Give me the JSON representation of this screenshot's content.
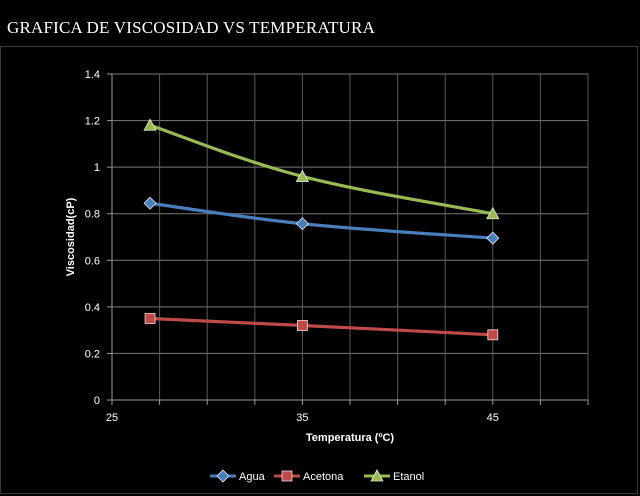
{
  "page": {
    "title": "GRAFICA DE VISCOSIDAD VS TEMPERATURA"
  },
  "chart_data": {
    "type": "scatter",
    "title": "",
    "xlabel": "Temperatura (ºC)",
    "ylabel": "Viscosidad(cP)",
    "xlim": [
      25,
      50
    ],
    "ylim": [
      0,
      1.4
    ],
    "xticks": [
      25,
      35,
      45
    ],
    "yticks": [
      0,
      0.2,
      0.4,
      0.6,
      0.8,
      1,
      1.2,
      1.4
    ],
    "grid": true,
    "legend_position": "bottom",
    "series": [
      {
        "name": "Agua",
        "color": "#4a7ebb",
        "marker": "diamond",
        "x": [
          27,
          35,
          45
        ],
        "y": [
          0.845,
          0.757,
          0.695
        ]
      },
      {
        "name": "Acetona",
        "color": "#be4b48",
        "marker": "square",
        "x": [
          27,
          35,
          45
        ],
        "y": [
          0.35,
          0.32,
          0.28
        ]
      },
      {
        "name": "Etanol",
        "color": "#98b954",
        "marker": "triangle",
        "x": [
          27,
          35,
          45
        ],
        "y": [
          1.18,
          0.96,
          0.8
        ]
      }
    ]
  }
}
